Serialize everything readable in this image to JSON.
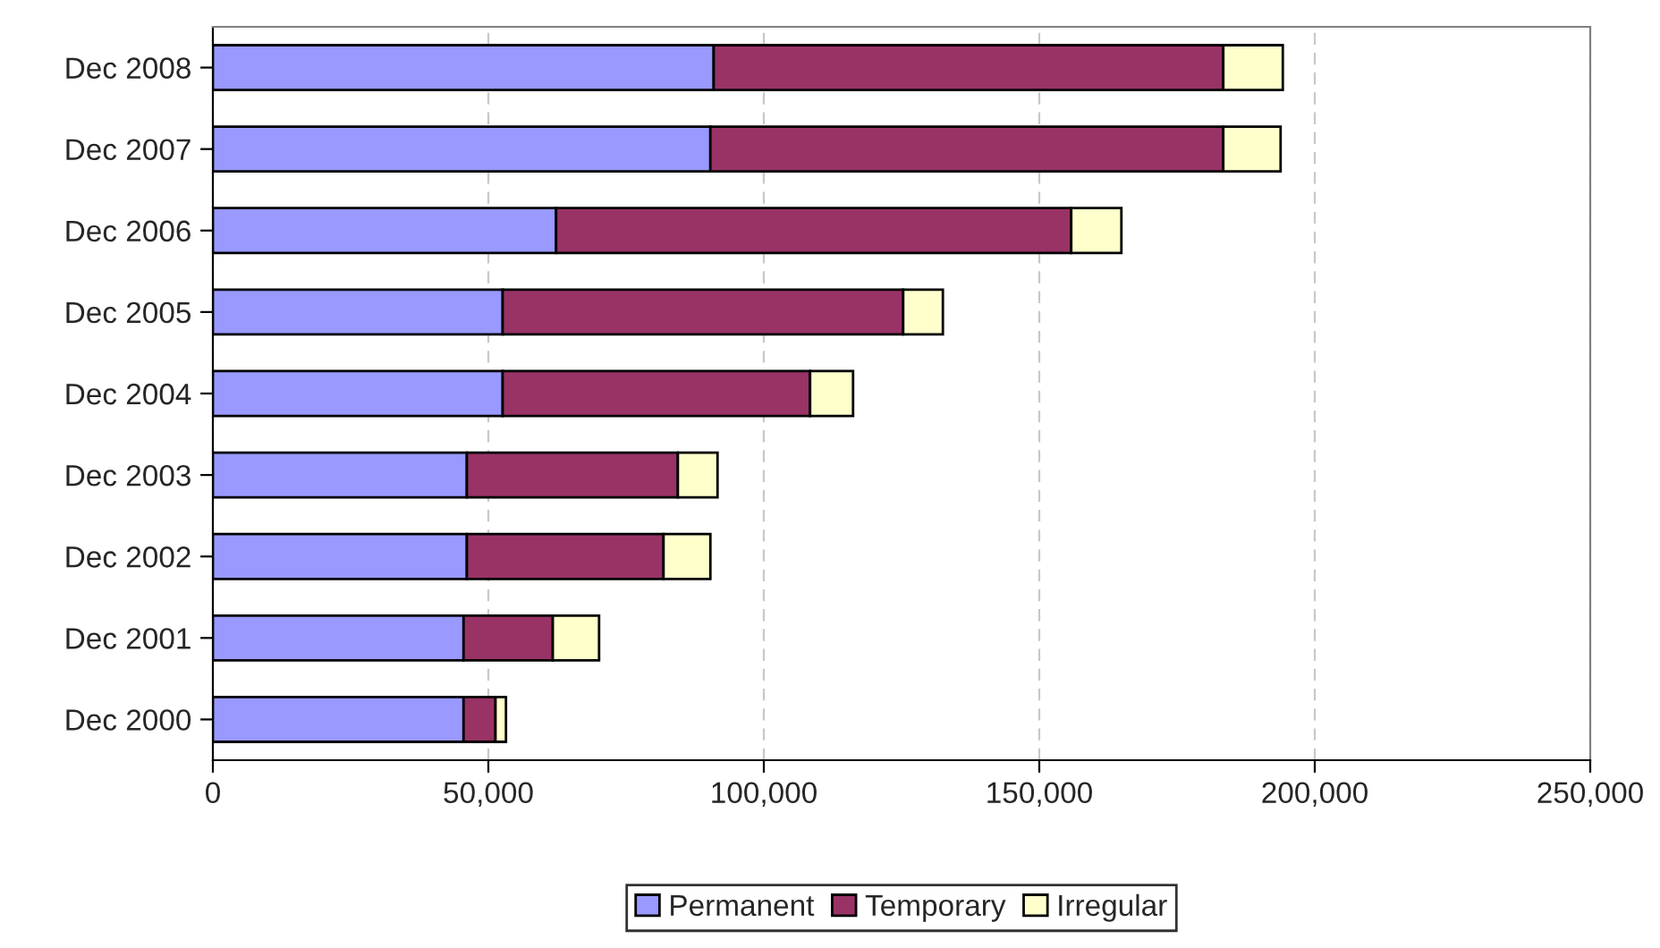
{
  "chart_data": {
    "type": "bar",
    "orientation": "horizontal",
    "stacked": true,
    "categories": [
      "Dec 2008",
      "Dec 2007",
      "Dec 2006",
      "Dec 2005",
      "Dec 2004",
      "Dec 2003",
      "Dec 2002",
      "Dec 2001",
      "Dec 2000"
    ],
    "series": [
      {
        "name": "Permanent",
        "color": "#9999ff",
        "values": [
          90900,
          90300,
          62300,
          52600,
          52600,
          46100,
          46100,
          45500,
          45500
        ]
      },
      {
        "name": "Temporary",
        "color": "#993366",
        "values": [
          92500,
          93100,
          93500,
          72700,
          55800,
          38300,
          35700,
          16200,
          5800
        ]
      },
      {
        "name": "Irregular",
        "color": "#ffffcc",
        "values": [
          10800,
          10400,
          9100,
          7200,
          7800,
          7200,
          8500,
          8400,
          1900
        ]
      }
    ],
    "xlim": [
      0,
      250000
    ],
    "xticks": [
      0,
      {
        "value": 50000,
        "label": "50,000"
      },
      {
        "value": 100000,
        "label": "100,000"
      },
      {
        "value": 150000,
        "label": "150,000"
      },
      {
        "value": 200000,
        "label": "200,000"
      },
      {
        "value": 250000,
        "label": "250,000"
      }
    ],
    "grid": "x",
    "legend": "bottom"
  }
}
